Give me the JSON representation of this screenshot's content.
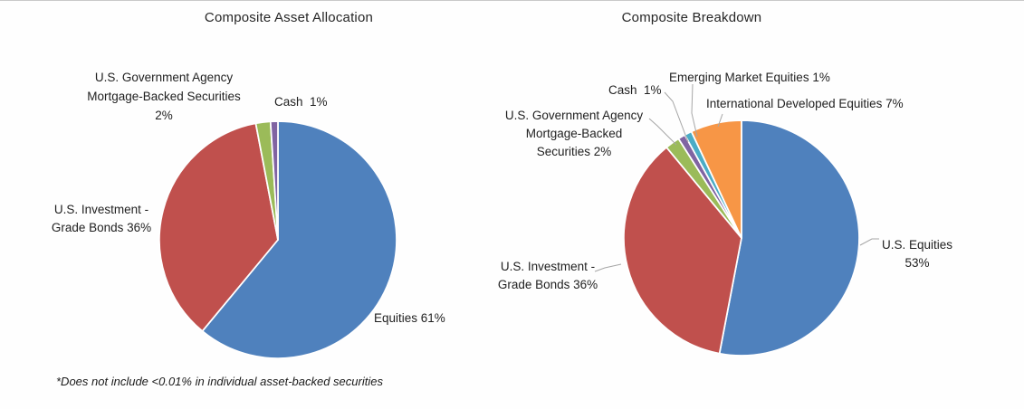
{
  "page": {
    "background": "#FFFFFF"
  },
  "colors": {
    "text": "#1F1F1F",
    "title": "#262626",
    "leader_line": "#A6A6A6",
    "slice_border": "#FFFFFF",
    "blue": "#4F81BD",
    "red": "#C0504D",
    "green": "#9BBB59",
    "purple": "#8064A2",
    "teal": "#4BACC6",
    "orange": "#F79646"
  },
  "chart_data": [
    {
      "type": "pie",
      "side": "left",
      "title": "Composite Asset Allocation",
      "categories": [
        "Equities",
        "U.S. Investment - Grade Bonds",
        "U.S. Government Agency Mortgage-Backed Securities",
        "Cash"
      ],
      "values": [
        61,
        36,
        2,
        1
      ],
      "colors": [
        "#4F81BD",
        "#C0504D",
        "#9BBB59",
        "#8064A2"
      ],
      "start_angle_deg": 0,
      "direction": "clockwise",
      "legend": "none",
      "labels": {
        "equities": "Equities 61%",
        "bonds": "U.S. Investment -\nGrade Bonds 36%",
        "mbs": "U.S. Government Agency\nMortgage-Backed Securities\n2%",
        "cash": "Cash  1%"
      },
      "footnote": "*Does not include <0.01% in individual asset-backed securities"
    },
    {
      "type": "pie",
      "side": "right",
      "title": "Composite Breakdown",
      "categories": [
        "U.S. Equities",
        "U.S. Investment - Grade Bonds",
        "U.S. Government Agency Mortgage-Backed Securities",
        "Cash",
        "Emerging Market Equities",
        "International Developed Equities"
      ],
      "values": [
        53,
        36,
        2,
        1,
        1,
        7
      ],
      "colors": [
        "#4F81BD",
        "#C0504D",
        "#9BBB59",
        "#8064A2",
        "#4BACC6",
        "#F79646"
      ],
      "start_angle_deg": 0,
      "direction": "clockwise",
      "legend": "none",
      "labels": {
        "us_equities": "U.S. Equities\n53%",
        "bonds": "U.S. Investment -\nGrade Bonds 36%",
        "mbs": "U.S. Government Agency\nMortgage-Backed\nSecurities 2%",
        "cash": "Cash  1%",
        "emerging": "Emerging Market Equities 1%",
        "intl": "International Developed Equities 7%"
      }
    }
  ]
}
